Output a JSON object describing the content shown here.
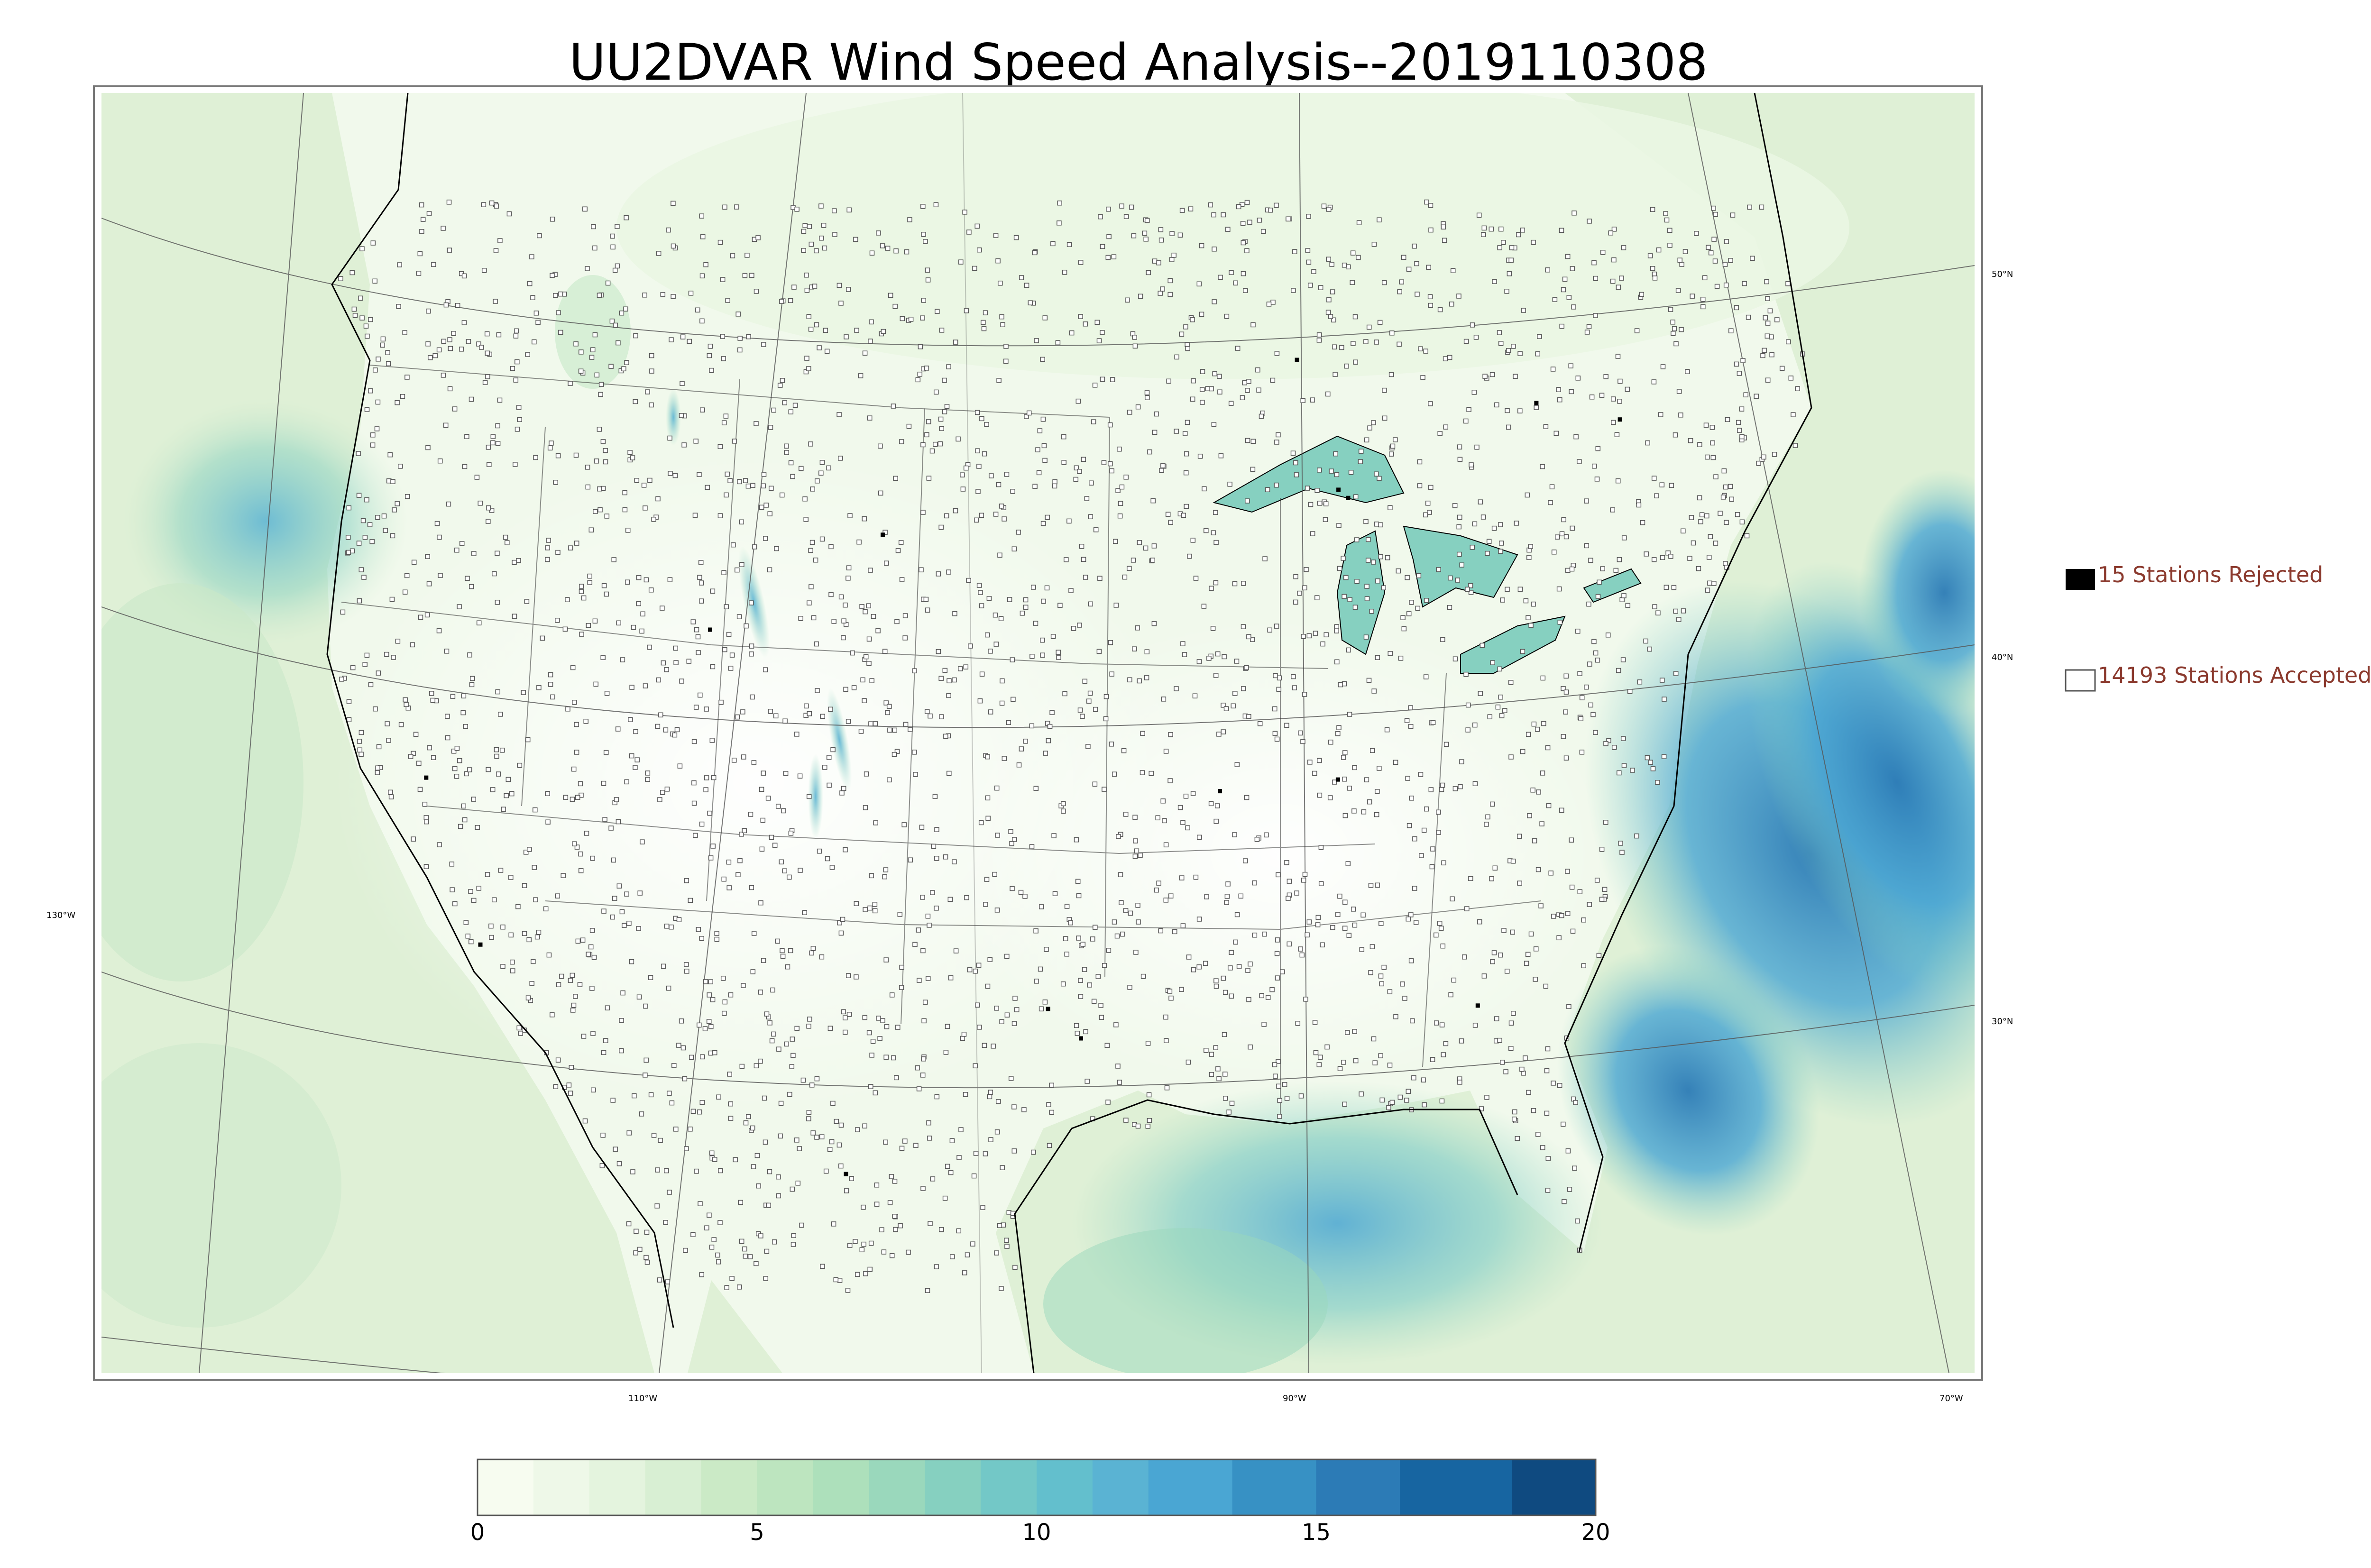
{
  "title": "UU2DVAR Wind Speed Analysis--2019110308",
  "legend": {
    "rejected_label": "15 Stations Rejected",
    "accepted_label": "14193 Stations Accepted",
    "rejected_count": 15,
    "accepted_count": 14193,
    "text_color": "#8b3a2e"
  },
  "graticule": {
    "lat_labels": [
      "50°N",
      "40°N",
      "30°N"
    ],
    "lon_labels": [
      "130°W",
      "110°W",
      "90°W",
      "70°W"
    ]
  },
  "colorbar": {
    "min": 0,
    "max": 20,
    "tick_values": [
      0,
      5,
      10,
      15,
      20
    ],
    "tick_labels": [
      "0",
      "5",
      "10",
      "15",
      "20"
    ],
    "bin_edges": [
      0,
      1,
      2,
      3,
      4,
      5,
      6,
      7,
      8,
      9,
      10,
      11,
      12,
      13.5,
      15,
      16.5,
      18.5,
      20
    ],
    "colors": [
      "#f7fcf0",
      "#eef8e8",
      "#e4f4de",
      "#d8efd3",
      "#cbeac6",
      "#bde5bf",
      "#ade0bb",
      "#9ad8bc",
      "#86d0c0",
      "#73c8c7",
      "#63bfcd",
      "#5ab3d3",
      "#4aa6d3",
      "#3791c4",
      "#2c7bb6",
      "#1765a1",
      "#0f4a80"
    ]
  },
  "colors": {
    "land_light": "#f4faee",
    "land_mid": "#e3f2da",
    "ocean_pacific": "#c5e6c8",
    "ocean_atlantic_strong": "#4ba8d2",
    "gulf": "#7cc7c8",
    "station_rejected": "#000000",
    "station_accepted_edge": "#555555"
  }
}
